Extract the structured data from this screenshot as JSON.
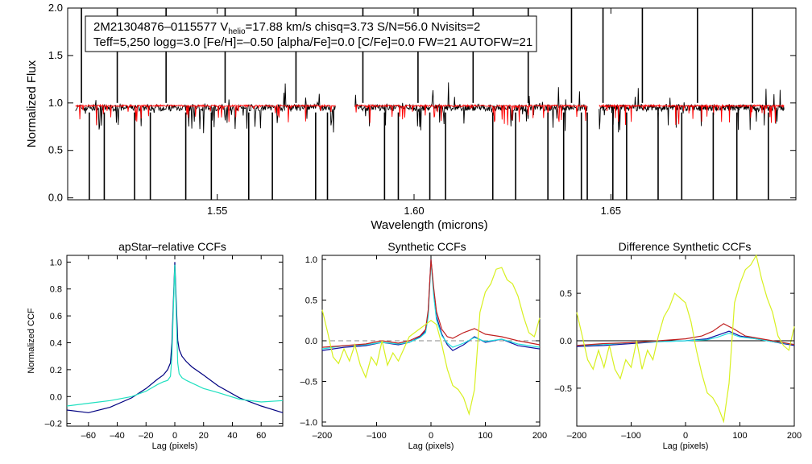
{
  "chart_data": [
    {
      "id": "spectrum",
      "type": "line",
      "xlabel": "Wavelength (microns)",
      "ylabel": "Normalized Flux",
      "xlim": [
        1.512,
        1.697
      ],
      "ylim": [
        -0.02,
        2.0
      ],
      "xticks": [
        1.55,
        1.6,
        1.65
      ],
      "xtick_labels": [
        "1.55",
        "1.60",
        "1.65"
      ],
      "yticks": [
        0.0,
        0.5,
        1.0,
        1.5,
        2.0
      ],
      "ytick_labels": [
        "0.0",
        "0.5",
        "1.0",
        "1.5",
        "2.0"
      ],
      "info_line1_pre": "2M21304876–0115577  V",
      "info_line1_sub": "helio",
      "info_line1_post": "=17.88 km/s  chisq=3.73  S/N=56.0  Nvisits=2",
      "info_line2": "Teff=5,250 logg=3.0 [Fe/H]=–0.50 [alpha/Fe]=0.0 [C/Fe]=0.0 FW=21 AUTOFW=21",
      "chips": [
        [
          1.514,
          1.58
        ],
        [
          1.585,
          1.644
        ],
        [
          1.647,
          1.694
        ]
      ],
      "series": [
        {
          "name": "observed",
          "color": "#000000",
          "level": 0.95,
          "noise": 0.035
        },
        {
          "name": "model",
          "color": "#ff0000",
          "level": 0.97,
          "noise": 0.01
        }
      ],
      "strong_lines": [
        1.5155,
        1.5175,
        1.5213,
        1.5246,
        1.529,
        1.533,
        1.537,
        1.542,
        1.5485,
        1.552,
        1.558,
        1.564,
        1.57,
        1.575,
        1.578,
        1.587,
        1.5925,
        1.596,
        1.601,
        1.604,
        1.608,
        1.615,
        1.62,
        1.6258,
        1.629,
        1.634,
        1.638,
        1.64,
        1.6425,
        1.644,
        1.648,
        1.6505,
        1.654,
        1.658,
        1.662,
        1.668,
        1.672,
        1.676,
        1.682,
        1.686,
        1.69
      ]
    },
    {
      "id": "apstar",
      "type": "line",
      "title": "apStar–relative CCFs",
      "xlabel": "Lag (pixels)",
      "ylabel": "Normalized CCF",
      "xlim": [
        -75,
        75
      ],
      "ylim": [
        -0.22,
        1.05
      ],
      "xticks": [
        -60,
        -40,
        -20,
        0,
        20,
        40,
        60
      ],
      "xtick_labels": [
        "–60",
        "–40",
        "–20",
        "0",
        "20",
        "40",
        "60"
      ],
      "yticks": [
        -0.2,
        0.0,
        0.2,
        0.4,
        0.6,
        0.8,
        1.0
      ],
      "ytick_labels": [
        "–0.2",
        "0.0",
        "0.2",
        "0.4",
        "0.6",
        "0.8",
        "1.0"
      ],
      "series": [
        {
          "name": "ccf-1",
          "color": "#000080",
          "x": [
            -75,
            -60,
            -45,
            -30,
            -20,
            -12,
            -8,
            -5,
            -3,
            -2,
            -1,
            0,
            1,
            2,
            3,
            5,
            8,
            12,
            20,
            30,
            45,
            60,
            75
          ],
          "y": [
            -0.1,
            -0.12,
            -0.08,
            -0.01,
            0.06,
            0.13,
            0.16,
            0.2,
            0.25,
            0.4,
            0.7,
            1.0,
            0.7,
            0.42,
            0.35,
            0.3,
            0.26,
            0.22,
            0.16,
            0.08,
            -0.01,
            -0.07,
            -0.12
          ]
        },
        {
          "name": "ccf-2",
          "color": "#20e0c0",
          "x": [
            -75,
            -60,
            -45,
            -30,
            -20,
            -12,
            -8,
            -5,
            -3,
            -2,
            -1,
            0,
            1,
            2,
            3,
            5,
            8,
            12,
            20,
            30,
            45,
            60,
            75
          ],
          "y": [
            -0.07,
            -0.05,
            -0.03,
            0.0,
            0.04,
            0.09,
            0.11,
            0.12,
            0.15,
            0.3,
            0.65,
            0.98,
            0.62,
            0.25,
            0.17,
            0.14,
            0.12,
            0.1,
            0.06,
            0.03,
            -0.02,
            -0.04,
            -0.03
          ]
        }
      ]
    },
    {
      "id": "synthetic",
      "type": "line",
      "title": "Synthetic CCFs",
      "xlabel": "Lag (pixels)",
      "ylabel": "",
      "xlim": [
        -200,
        200
      ],
      "ylim": [
        -1.05,
        1.05
      ],
      "xticks": [
        -200,
        -100,
        0,
        100,
        200
      ],
      "xtick_labels": [
        "–200",
        "–100",
        "0",
        "100",
        "200"
      ],
      "yticks": [
        -1.0,
        -0.5,
        0.0,
        0.5,
        1.0
      ],
      "ytick_labels": [
        "–1.0",
        "–0.5",
        "0.0",
        "0.5",
        "1.0"
      ],
      "zero_line": {
        "y": 0.0,
        "color": "#888888",
        "dash": true
      },
      "series": [
        {
          "name": "synth-blue",
          "color": "#1010a0",
          "x": [
            -200,
            -160,
            -120,
            -90,
            -60,
            -40,
            -20,
            -10,
            -5,
            0,
            5,
            10,
            20,
            30,
            40,
            60,
            80,
            100,
            130,
            160,
            200
          ],
          "y": [
            -0.12,
            -0.08,
            -0.06,
            -0.02,
            -0.05,
            -0.02,
            0.05,
            0.12,
            0.35,
            1.0,
            0.6,
            0.3,
            0.08,
            -0.05,
            -0.12,
            -0.05,
            0.05,
            -0.02,
            0.02,
            -0.06,
            -0.1
          ]
        },
        {
          "name": "synth-cyan",
          "color": "#20e0e0",
          "x": [
            -200,
            -160,
            -120,
            -90,
            -60,
            -40,
            -20,
            -10,
            -5,
            0,
            5,
            10,
            20,
            30,
            40,
            60,
            80,
            100,
            130,
            160,
            200
          ],
          "y": [
            -0.1,
            -0.06,
            -0.05,
            -0.02,
            -0.04,
            -0.02,
            0.04,
            0.1,
            0.3,
            0.98,
            0.55,
            0.26,
            0.06,
            -0.03,
            -0.08,
            -0.03,
            0.04,
            -0.01,
            0.02,
            -0.04,
            -0.08
          ]
        },
        {
          "name": "synth-red",
          "color": "#c02020",
          "x": [
            -200,
            -160,
            -120,
            -90,
            -60,
            -40,
            -20,
            -10,
            -5,
            0,
            5,
            10,
            20,
            30,
            40,
            60,
            80,
            100,
            130,
            160,
            200
          ],
          "y": [
            -0.08,
            -0.06,
            -0.04,
            0.0,
            -0.03,
            0.0,
            0.06,
            0.14,
            0.38,
            1.0,
            0.65,
            0.36,
            0.14,
            0.05,
            0.03,
            0.1,
            0.15,
            0.08,
            0.05,
            0.0,
            -0.05
          ]
        },
        {
          "name": "synth-yellow",
          "color": "#d8f020",
          "x": [
            -200,
            -190,
            -180,
            -170,
            -160,
            -150,
            -140,
            -130,
            -120,
            -110,
            -100,
            -90,
            -80,
            -70,
            -60,
            -50,
            -40,
            -30,
            -20,
            -10,
            0,
            10,
            20,
            30,
            40,
            50,
            60,
            70,
            80,
            90,
            100,
            110,
            120,
            130,
            140,
            150,
            160,
            170,
            180,
            190,
            200
          ],
          "y": [
            0.38,
            0.1,
            -0.2,
            -0.28,
            -0.1,
            -0.25,
            -0.05,
            -0.3,
            -0.45,
            -0.2,
            -0.3,
            0.0,
            -0.3,
            -0.15,
            -0.25,
            -0.1,
            0.05,
            0.1,
            0.15,
            0.2,
            0.25,
            0.2,
            -0.05,
            -0.35,
            -0.55,
            -0.6,
            -0.7,
            -0.9,
            -0.6,
            0.35,
            0.6,
            0.7,
            0.88,
            0.9,
            0.75,
            0.7,
            0.55,
            0.3,
            0.1,
            0.05,
            0.28
          ]
        }
      ]
    },
    {
      "id": "difference",
      "type": "line",
      "title": "Difference Synthetic CCFs",
      "xlabel": "Lag (pixels)",
      "ylabel": "",
      "xlim": [
        -200,
        200
      ],
      "ylim": [
        -0.9,
        0.9
      ],
      "xticks": [
        -200,
        -100,
        0,
        100,
        200
      ],
      "xtick_labels": [
        "–200",
        "–100",
        "0",
        "100",
        "200"
      ],
      "yticks": [
        -0.5,
        0.0,
        0.5
      ],
      "ytick_labels": [
        "–0.5",
        "0.0",
        "0.5"
      ],
      "zero_line": {
        "y": 0.0,
        "color": "#000000",
        "dash": false
      },
      "series": [
        {
          "name": "diff-blue",
          "color": "#1010a0",
          "x": [
            -200,
            -150,
            -100,
            -50,
            0,
            40,
            60,
            80,
            100,
            130,
            160,
            200
          ],
          "y": [
            -0.06,
            -0.05,
            -0.03,
            -0.01,
            0.0,
            0.02,
            0.06,
            0.1,
            0.05,
            0.02,
            -0.01,
            -0.05
          ]
        },
        {
          "name": "diff-cyan",
          "color": "#20e0e0",
          "x": [
            -200,
            -150,
            -100,
            -50,
            0,
            40,
            60,
            80,
            100,
            130,
            160,
            200
          ],
          "y": [
            -0.05,
            -0.04,
            -0.02,
            -0.01,
            0.0,
            0.01,
            0.04,
            0.08,
            0.04,
            0.02,
            -0.01,
            -0.04
          ]
        },
        {
          "name": "diff-red",
          "color": "#c02020",
          "x": [
            -200,
            -150,
            -100,
            -50,
            0,
            30,
            50,
            70,
            90,
            110,
            130,
            160,
            200
          ],
          "y": [
            -0.05,
            -0.03,
            -0.02,
            0.0,
            0.02,
            0.05,
            0.1,
            0.18,
            0.12,
            0.05,
            0.03,
            0.0,
            -0.04
          ]
        },
        {
          "name": "diff-yellow",
          "color": "#d8f020",
          "x": [
            -200,
            -190,
            -180,
            -170,
            -160,
            -150,
            -140,
            -130,
            -120,
            -110,
            -100,
            -90,
            -80,
            -70,
            -60,
            -50,
            -40,
            -30,
            -20,
            -10,
            0,
            10,
            20,
            30,
            40,
            50,
            60,
            70,
            80,
            90,
            100,
            110,
            120,
            130,
            140,
            150,
            160,
            170,
            180,
            190,
            200
          ],
          "y": [
            0.3,
            0.05,
            -0.2,
            -0.3,
            -0.1,
            -0.28,
            -0.05,
            -0.3,
            -0.4,
            -0.2,
            -0.28,
            0.0,
            -0.3,
            -0.1,
            -0.2,
            0.05,
            0.25,
            0.35,
            0.5,
            0.45,
            0.4,
            0.2,
            -0.1,
            -0.35,
            -0.55,
            -0.6,
            -0.7,
            -0.85,
            -0.45,
            0.4,
            0.6,
            0.75,
            0.8,
            0.9,
            0.65,
            0.45,
            0.3,
            0.05,
            -0.05,
            -0.1,
            0.15
          ]
        }
      ]
    }
  ]
}
